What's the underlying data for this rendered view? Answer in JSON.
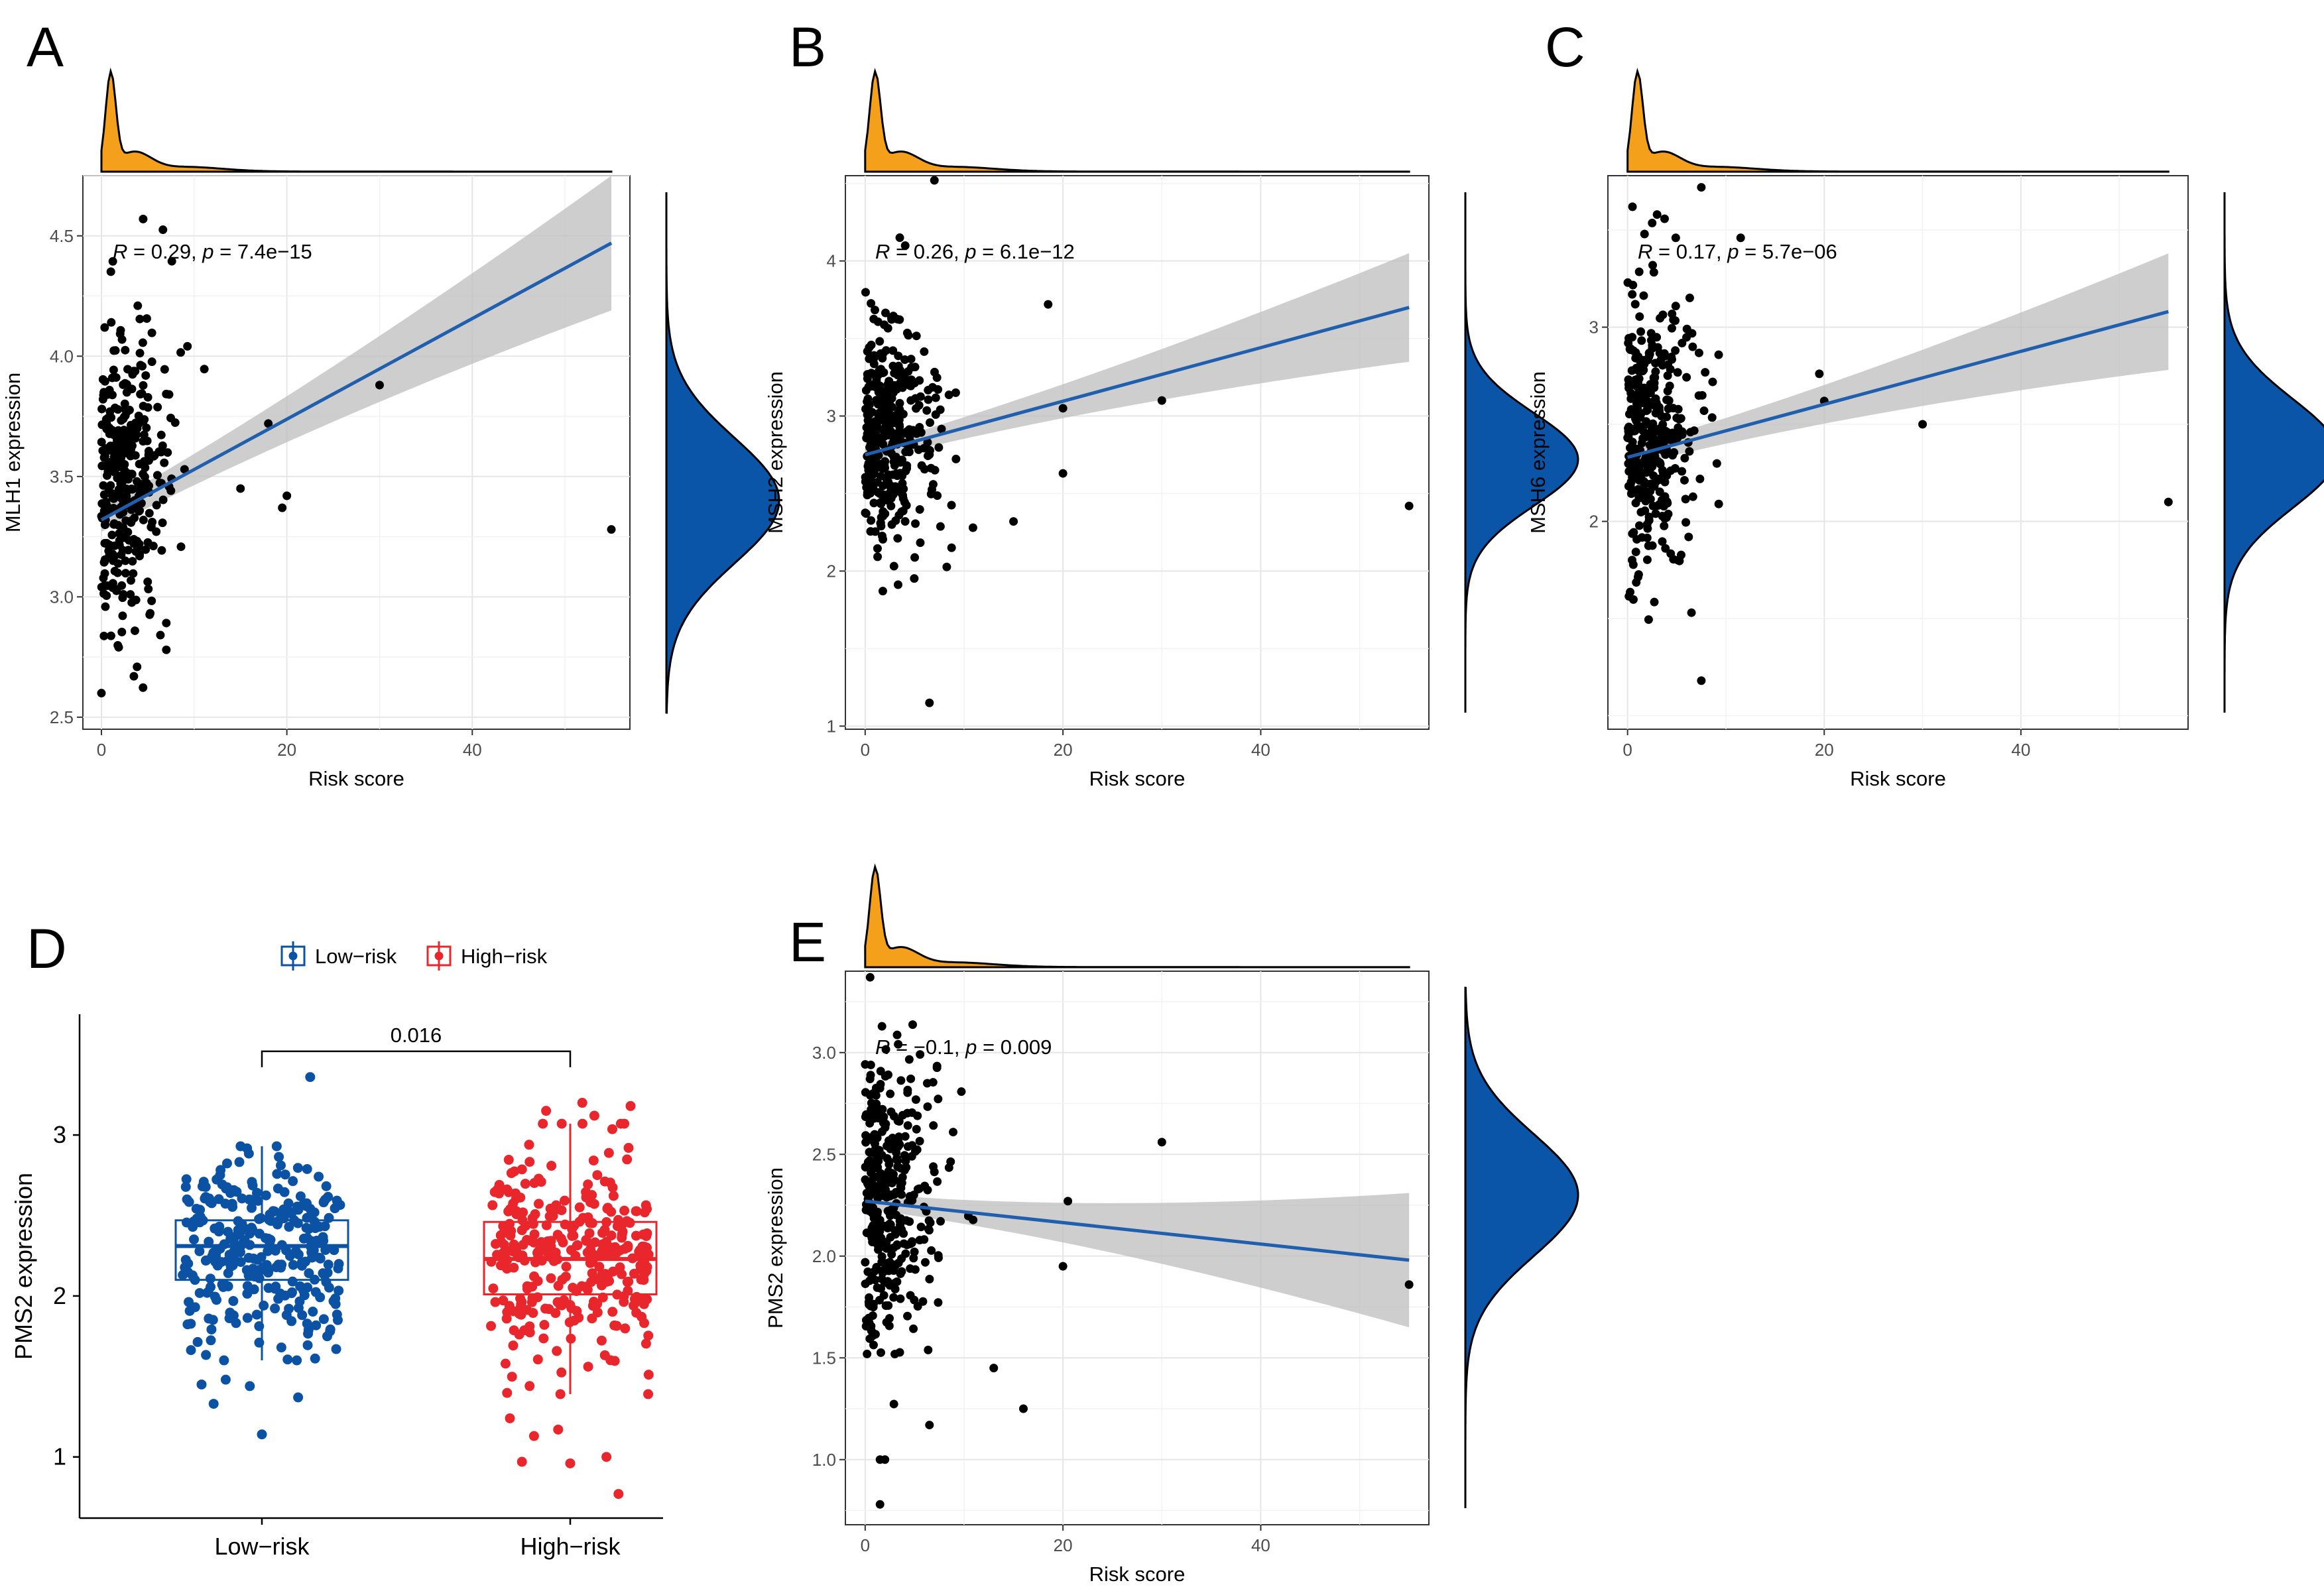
{
  "colors": {
    "point": "#000000",
    "line": "#1f5fad",
    "ribbon": "#bdbdbd",
    "top_density": "#f5a01a",
    "side_density": "#0a55a8",
    "low_risk": "#0b52a5",
    "high_risk": "#e8262c",
    "grid_major": "#e6e6e6",
    "grid_minor": "#f2f2f2"
  },
  "chart_data": [
    {
      "panel": "A",
      "type": "scatter",
      "xlabel": "Risk score",
      "ylabel": "MLH1 expression",
      "xlim": [
        -2,
        57
      ],
      "ylim": [
        2.45,
        4.75
      ],
      "xticks": [
        0,
        20,
        40
      ],
      "yticks": [
        2.5,
        3.0,
        3.5,
        4.0,
        4.5
      ],
      "ytick_labels": [
        "2.5",
        "3.0",
        "3.5",
        "4.0",
        "4.5"
      ],
      "annotation": {
        "r_label": "R",
        "p_label": "p",
        "r_value": "0.29",
        "p_value": "7.4e−15"
      },
      "fit": {
        "x0": 0,
        "y0": 3.32,
        "x1": 55,
        "y1": 4.47,
        "ribbon_left": 0.05,
        "ribbon_right": 0.28
      },
      "seed": 11,
      "cluster": {
        "n": 360,
        "mean": 3.45,
        "sd": 0.3
      },
      "outliers": [
        [
          4.5,
          4.57
        ],
        [
          30,
          3.88
        ],
        [
          55,
          3.28
        ],
        [
          19.5,
          3.37
        ],
        [
          20,
          3.42
        ],
        [
          18,
          3.72
        ],
        [
          15,
          3.45
        ],
        [
          7,
          2.78
        ],
        [
          3.5,
          2.67
        ],
        [
          0,
          2.6
        ]
      ],
      "side_density": {
        "mean": 3.4,
        "sd": 0.26
      }
    },
    {
      "panel": "B",
      "type": "scatter",
      "xlabel": "Risk score",
      "ylabel": "MSH2 expression",
      "xlim": [
        -2,
        57
      ],
      "ylim": [
        0.98,
        4.55
      ],
      "xticks": [
        0,
        20,
        40
      ],
      "yticks": [
        1,
        2,
        3,
        4
      ],
      "ytick_labels": [
        "1",
        "2",
        "3",
        "4"
      ],
      "annotation": {
        "r_label": "R",
        "p_label": "p",
        "r_value": "0.26",
        "p_value": "6.1e−12"
      },
      "fit": {
        "x0": 0,
        "y0": 2.75,
        "x1": 55,
        "y1": 3.7,
        "ribbon_left": 0.05,
        "ribbon_right": 0.35
      },
      "seed": 23,
      "cluster": {
        "n": 360,
        "mean": 2.83,
        "sd": 0.38
      },
      "outliers": [
        [
          7,
          4.52
        ],
        [
          3.5,
          4.15
        ],
        [
          30,
          3.1
        ],
        [
          20,
          3.05
        ],
        [
          55,
          2.42
        ],
        [
          18.5,
          3.72
        ],
        [
          6.5,
          1.15
        ],
        [
          15,
          2.32
        ],
        [
          20,
          2.63
        ]
      ],
      "side_density": {
        "mean": 2.72,
        "sd": 0.3
      }
    },
    {
      "panel": "C",
      "type": "scatter",
      "xlabel": "Risk score",
      "ylabel": "MSH6 expression",
      "xlim": [
        -2,
        57
      ],
      "ylim": [
        0.93,
        3.78
      ],
      "xticks": [
        0,
        20,
        40
      ],
      "yticks": [
        2,
        3
      ],
      "ytick_labels": [
        "2",
        "3"
      ],
      "annotation": {
        "r_label": "R",
        "p_label": "p",
        "r_value": "0.17",
        "p_value": "5.7e−06"
      },
      "fit": {
        "x0": 0,
        "y0": 2.33,
        "x1": 55,
        "y1": 3.08,
        "ribbon_left": 0.05,
        "ribbon_right": 0.3
      },
      "seed": 37,
      "cluster": {
        "n": 360,
        "mean": 2.45,
        "sd": 0.35
      },
      "outliers": [
        [
          7.5,
          3.72
        ],
        [
          11.5,
          3.46
        ],
        [
          30,
          2.5
        ],
        [
          20,
          2.62
        ],
        [
          55,
          2.1
        ],
        [
          6.5,
          1.53
        ],
        [
          7.5,
          1.18
        ],
        [
          0.5,
          3.62
        ],
        [
          3,
          3.58
        ],
        [
          19.5,
          2.76
        ]
      ],
      "side_density": {
        "mean": 2.35,
        "sd": 0.28
      }
    },
    {
      "panel": "D",
      "type": "box",
      "ylabel": "PMS2 expression",
      "categories": [
        "Low−risk",
        "High−risk"
      ],
      "legend": [
        "Low−risk",
        "High−risk"
      ],
      "ylim": [
        0.62,
        3.75
      ],
      "yticks": [
        1,
        2,
        3
      ],
      "ytick_labels": [
        "1",
        "2",
        "3"
      ],
      "pvalue": "0.016",
      "boxes": [
        {
          "group": "Low−risk",
          "q1": 2.1,
          "median": 2.31,
          "q3": 2.47,
          "whisker_low": 1.6,
          "whisker_high": 2.93,
          "n": 300,
          "mean": 2.3,
          "sd": 0.3,
          "outliers": [
            1.45,
            1.44,
            1.37,
            1.33,
            1.14,
            3.36,
            1.48
          ]
        },
        {
          "group": "High−risk",
          "q1": 2.01,
          "median": 2.23,
          "q3": 2.46,
          "whisker_low": 1.39,
          "whisker_high": 3.07,
          "n": 320,
          "mean": 2.23,
          "sd": 0.32,
          "outliers": [
            1.24,
            1.17,
            1.0,
            0.97,
            0.96,
            0.77,
            1.13,
            3.2,
            3.18,
            3.15,
            3.12
          ]
        }
      ]
    },
    {
      "panel": "E",
      "type": "scatter",
      "xlabel": "Risk score",
      "ylabel": "PMS2 expression",
      "xlim": [
        -2,
        57
      ],
      "ylim": [
        0.68,
        3.4
      ],
      "xticks": [
        0,
        20,
        40
      ],
      "yticks": [
        1.0,
        1.5,
        2.0,
        2.5,
        3.0
      ],
      "ytick_labels": [
        "1.0",
        "1.5",
        "2.0",
        "2.5",
        "3.0"
      ],
      "annotation": {
        "r_label": "R",
        "p_label": "p",
        "r_value": "−0.1",
        "p_value": "0.009"
      },
      "fit": {
        "x0": 0,
        "y0": 2.27,
        "x1": 55,
        "y1": 1.98,
        "ribbon_left": 0.04,
        "ribbon_right": 0.33
      },
      "seed": 53,
      "cluster": {
        "n": 360,
        "mean": 2.26,
        "sd": 0.35
      },
      "outliers": [
        [
          0.5,
          3.37
        ],
        [
          30,
          2.56
        ],
        [
          55,
          1.86
        ],
        [
          16,
          1.25
        ],
        [
          20,
          1.95
        ],
        [
          6.5,
          1.17
        ],
        [
          1.5,
          1.0
        ],
        [
          2,
          1.0
        ],
        [
          1.5,
          0.78
        ],
        [
          13,
          1.45
        ],
        [
          20.5,
          2.27
        ]
      ],
      "side_density": {
        "mean": 2.3,
        "sd": 0.3
      }
    }
  ]
}
